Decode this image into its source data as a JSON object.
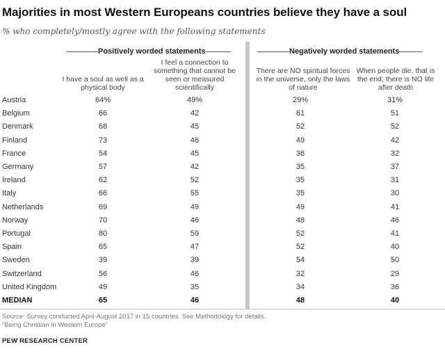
{
  "chart_data": {
    "type": "table",
    "title": "Majorities in most Western Europeans countries believe they have a soul",
    "subtitle": "% who completely/mostly agree with the following statements",
    "groups": [
      {
        "label": "Positively worded statements"
      },
      {
        "label": "Negatively worded statements"
      }
    ],
    "columns": [
      "I have a soul as well as a physical body",
      "I feel a connection to something that cannot be seen or measured scientifically",
      "There are NO spiritual forces in the universe, only the laws of nature",
      "When people die, that is the end; there is NO life after death"
    ],
    "rows": [
      {
        "country": "Austria",
        "values": [
          "64%",
          "49%",
          "29%",
          "31%"
        ]
      },
      {
        "country": "Belgium",
        "values": [
          "66",
          "42",
          "61",
          "51"
        ]
      },
      {
        "country": "Denmark",
        "values": [
          "68",
          "45",
          "52",
          "52"
        ]
      },
      {
        "country": "Finland",
        "values": [
          "73",
          "46",
          "49",
          "42"
        ]
      },
      {
        "country": "France",
        "values": [
          "54",
          "45",
          "36",
          "32"
        ]
      },
      {
        "country": "Germany",
        "values": [
          "57",
          "42",
          "35",
          "37"
        ]
      },
      {
        "country": "Ireland",
        "values": [
          "62",
          "52",
          "35",
          "31"
        ]
      },
      {
        "country": "Italy",
        "values": [
          "66",
          "55",
          "35",
          "30"
        ]
      },
      {
        "country": "Netherlands",
        "values": [
          "69",
          "49",
          "49",
          "41"
        ]
      },
      {
        "country": "Norway",
        "values": [
          "70",
          "46",
          "48",
          "46"
        ]
      },
      {
        "country": "Portugal",
        "values": [
          "80",
          "59",
          "52",
          "41"
        ]
      },
      {
        "country": "Spain",
        "values": [
          "65",
          "47",
          "52",
          "40"
        ]
      },
      {
        "country": "Sweden",
        "values": [
          "39",
          "39",
          "54",
          "50"
        ]
      },
      {
        "country": "Switzerland",
        "values": [
          "56",
          "46",
          "32",
          "29"
        ]
      },
      {
        "country": "United Kingdom",
        "values": [
          "49",
          "35",
          "34",
          "36"
        ]
      }
    ],
    "median": {
      "label": "MEDIAN",
      "values": [
        "65",
        "46",
        "48",
        "40"
      ]
    }
  },
  "footer": {
    "source_line1": "Source: Survey conducted April-August 2017 in 15 countries. See Methodology for details.",
    "source_line2": "“Being Christian in Western Europe”",
    "brand": "PEW RESEARCH CENTER"
  }
}
